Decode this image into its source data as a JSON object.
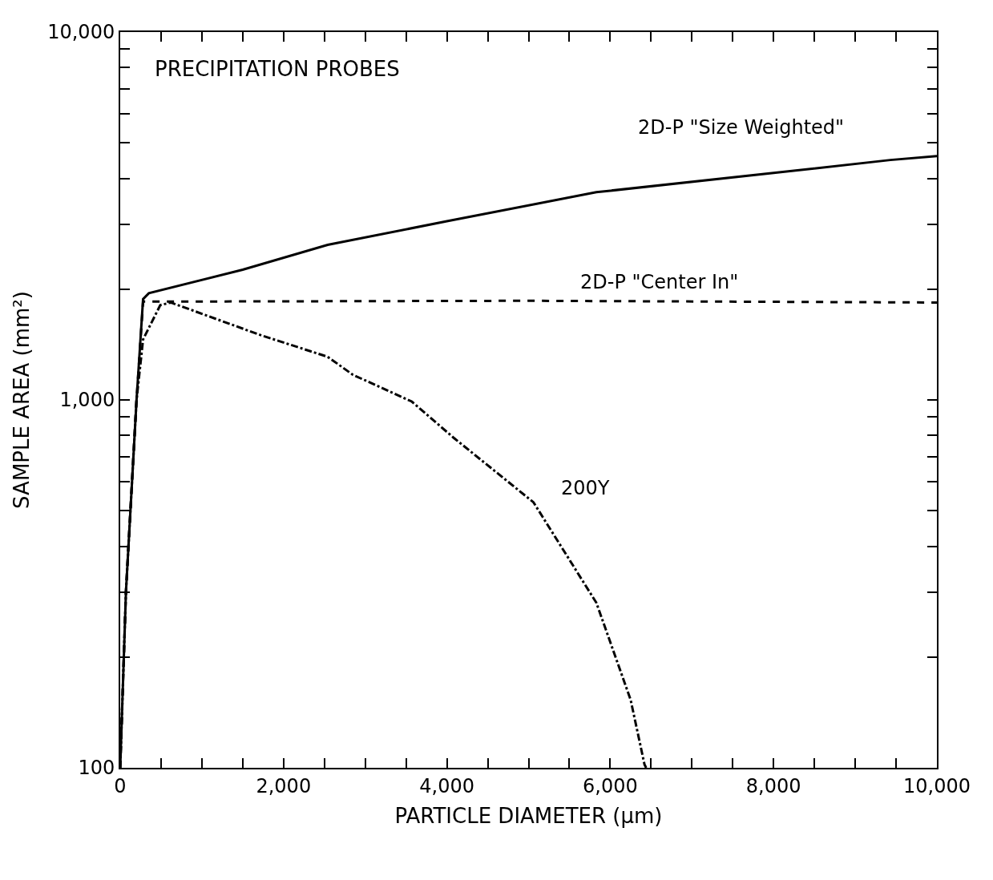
{
  "chart_data": {
    "type": "line",
    "title": "PRECIPITATION PROBES",
    "xlabel": "PARTICLE DIAMETER (μm)",
    "ylabel": "SAMPLE AREA (mm²)",
    "log": "y",
    "legend": false,
    "marker": "none",
    "xlim": [
      0,
      10000
    ],
    "ylim": [
      100,
      10000
    ],
    "xticks": [
      {
        "value": 0,
        "label": "0"
      },
      {
        "value": 500,
        "label": null
      },
      {
        "value": 1000,
        "label": null
      },
      {
        "value": 1500,
        "label": null
      },
      {
        "value": 2000,
        "label": "2,000"
      },
      {
        "value": 2500,
        "label": null
      },
      {
        "value": 3000,
        "label": null
      },
      {
        "value": 3500,
        "label": null
      },
      {
        "value": 4000,
        "label": "4,000"
      },
      {
        "value": 4500,
        "label": null
      },
      {
        "value": 5000,
        "label": null
      },
      {
        "value": 5500,
        "label": null
      },
      {
        "value": 6000,
        "label": "6,000"
      },
      {
        "value": 6500,
        "label": null
      },
      {
        "value": 7000,
        "label": null
      },
      {
        "value": 7500,
        "label": null
      },
      {
        "value": 8000,
        "label": "8,000"
      },
      {
        "value": 8500,
        "label": null
      },
      {
        "value": 9000,
        "label": null
      },
      {
        "value": 9500,
        "label": null
      },
      {
        "value": 10000,
        "label": "10,000"
      }
    ],
    "yticks": [
      {
        "value": 100,
        "label": "100"
      },
      {
        "value": 200,
        "label": null
      },
      {
        "value": 300,
        "label": null
      },
      {
        "value": 400,
        "label": null
      },
      {
        "value": 500,
        "label": null
      },
      {
        "value": 600,
        "label": null
      },
      {
        "value": 700,
        "label": null
      },
      {
        "value": 800,
        "label": null
      },
      {
        "value": 900,
        "label": null
      },
      {
        "value": 1000,
        "label": "1,000"
      },
      {
        "value": 2000,
        "label": null
      },
      {
        "value": 3000,
        "label": null
      },
      {
        "value": 4000,
        "label": null
      },
      {
        "value": 5000,
        "label": null
      },
      {
        "value": 6000,
        "label": null
      },
      {
        "value": 7000,
        "label": null
      },
      {
        "value": 8000,
        "label": null
      },
      {
        "value": 9000,
        "label": null
      },
      {
        "value": 10000,
        "label": "10,000"
      }
    ],
    "series": [
      {
        "name": "2D-P \"Size Weighted\"",
        "color": "#000000",
        "line_style": "solid",
        "x": [
          0,
          70,
          200,
          280,
          350,
          1500,
          2540,
          4000,
          5830,
          8000,
          9430,
          10000
        ],
        "values": [
          100,
          300,
          1000,
          1880,
          1950,
          2260,
          2640,
          3060,
          3670,
          4140,
          4490,
          4600
        ]
      },
      {
        "name": "2D-P \"Center In\"",
        "color": "#000000",
        "line_style": "dashed",
        "x": [
          0,
          70,
          200,
          280,
          5000,
          10000
        ],
        "values": [
          100,
          300,
          1000,
          1850,
          1860,
          1840
        ]
      },
      {
        "name": "200Y",
        "color": "#000000",
        "line_style": "dashdot",
        "x": [
          0,
          70,
          200,
          280,
          490,
          620,
          1720,
          2540,
          2850,
          3570,
          4080,
          5060,
          5830,
          6250,
          6420,
          6440
        ],
        "values": [
          100,
          300,
          1000,
          1460,
          1810,
          1840,
          1500,
          1310,
          1170,
          990,
          790,
          527,
          281,
          153,
          102,
          100
        ]
      }
    ]
  }
}
